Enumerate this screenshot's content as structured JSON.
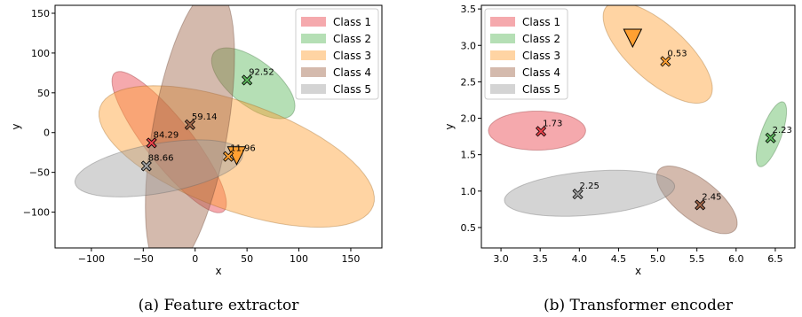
{
  "classColors": [
    "#e8414a",
    "#5cb85c",
    "#ffa032",
    "#a0664a",
    "#a0a0a0"
  ],
  "chart_data": [
    {
      "type": "scatter",
      "caption": "(a) Feature extractor",
      "xlabel": "x",
      "ylabel": "y",
      "xlim": [
        -135,
        180
      ],
      "ylim": [
        -145,
        160
      ],
      "xticks": [
        -100,
        -50,
        0,
        50,
        100,
        150
      ],
      "yticks": [
        -100,
        -50,
        0,
        50,
        100,
        150
      ],
      "legend_position": "top-right",
      "legend": [
        "Class 1",
        "Class 2",
        "Class 3",
        "Class 4",
        "Class 5"
      ],
      "ellipses": [
        {
          "class": 0,
          "cx": -25,
          "cy": -12,
          "rx": 85,
          "ry": 22,
          "angle": -52
        },
        {
          "class": 1,
          "cx": 56,
          "cy": 62,
          "rx": 48,
          "ry": 22,
          "angle": -38
        },
        {
          "class": 2,
          "cx": 40,
          "cy": -30,
          "rx": 140,
          "ry": 52,
          "angle": -20
        },
        {
          "class": 3,
          "cx": -5,
          "cy": 2,
          "rx": 140,
          "ry": 36,
          "angle": 80
        },
        {
          "class": 4,
          "cx": -35,
          "cy": -45,
          "rx": 82,
          "ry": 24,
          "angle": 10
        }
      ],
      "centers": [
        {
          "class": 0,
          "x": -42,
          "y": -13,
          "label": "84.29"
        },
        {
          "class": 1,
          "x": 50,
          "y": 66,
          "label": "92.52"
        },
        {
          "class": 2,
          "x": 32,
          "y": -30,
          "label": "11.96"
        },
        {
          "class": 3,
          "x": -5,
          "y": 10,
          "label": "59.14"
        },
        {
          "class": 4,
          "x": -47,
          "y": -42,
          "label": "88.66"
        }
      ],
      "triangle": {
        "class": 2,
        "x": 40,
        "y": -29
      }
    },
    {
      "type": "scatter",
      "caption": "(b) Transformer encoder",
      "xlabel": "x",
      "ylabel": "y",
      "xlim": [
        2.75,
        6.75
      ],
      "ylim": [
        0.22,
        3.55
      ],
      "xticks": [
        "3.0",
        "3.5",
        "4.0",
        "4.5",
        "5.0",
        "5.5",
        "6.0",
        "6.5"
      ],
      "yticks": [
        "0.5",
        "1.0",
        "1.5",
        "2.0",
        "2.5",
        "3.0",
        "3.5"
      ],
      "legend_position": "top-left",
      "legend": [
        "Class 1",
        "Class 2",
        "Class 3",
        "Class 4",
        "Class 5"
      ],
      "ellipses": [
        {
          "class": 0,
          "cx": 3.46,
          "cy": 1.83,
          "rx": 0.62,
          "ry": 0.25,
          "angle": 0
        },
        {
          "class": 1,
          "cx": 6.45,
          "cy": 1.78,
          "rx": 0.44,
          "ry": 0.13,
          "angle": 70
        },
        {
          "class": 2,
          "cx": 5.0,
          "cy": 2.9,
          "rx": 0.88,
          "ry": 0.36,
          "angle": -42
        },
        {
          "class": 3,
          "cx": 5.5,
          "cy": 0.88,
          "rx": 0.62,
          "ry": 0.26,
          "angle": -38
        },
        {
          "class": 4,
          "cx": 4.13,
          "cy": 0.97,
          "rx": 1.09,
          "ry": 0.28,
          "angle": 5
        }
      ],
      "centers": [
        {
          "class": 0,
          "x": 3.51,
          "y": 1.82,
          "label": "1.73"
        },
        {
          "class": 1,
          "x": 6.44,
          "y": 1.73,
          "label": "2.23"
        },
        {
          "class": 2,
          "x": 5.1,
          "y": 2.78,
          "label": "0.53"
        },
        {
          "class": 3,
          "x": 5.54,
          "y": 0.81,
          "label": "2.45"
        },
        {
          "class": 4,
          "x": 3.98,
          "y": 0.96,
          "label": "2.25"
        }
      ],
      "triangle": {
        "class": 2,
        "x": 4.68,
        "y": 3.1
      }
    }
  ]
}
